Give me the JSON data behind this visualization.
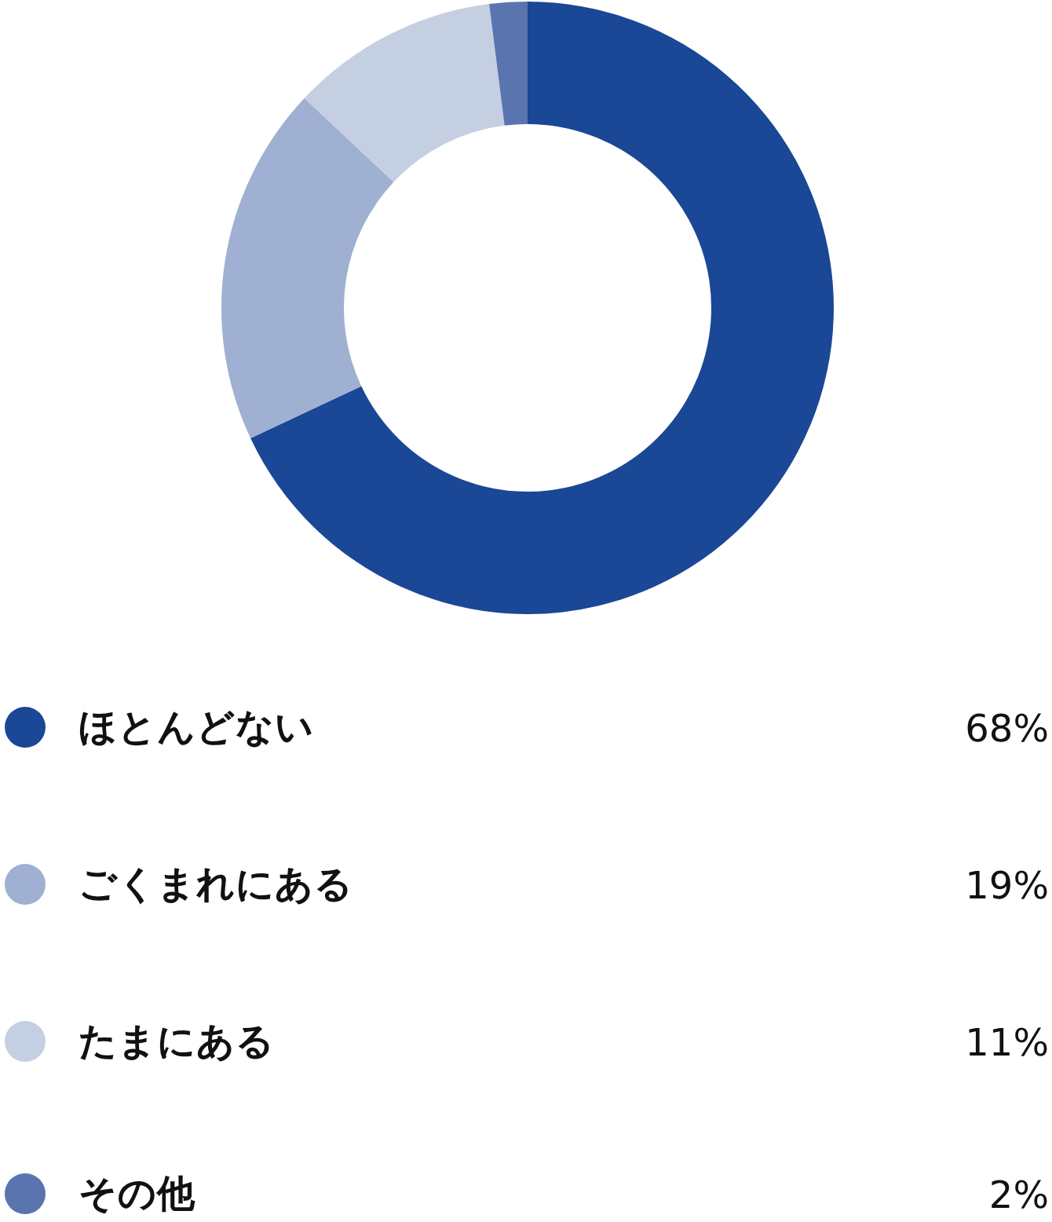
{
  "chart_data": {
    "type": "donut",
    "categories": [
      "ほとんどない",
      "ごくまれにある",
      "たまにある",
      "その他"
    ],
    "values": [
      68,
      19,
      11,
      2
    ],
    "colors": [
      "#1a4796",
      "#9fb0d2",
      "#c5cfe2",
      "#5a74b0"
    ],
    "value_labels": [
      "68%",
      "19%",
      "11%",
      "2%"
    ],
    "legend": "bottom"
  }
}
